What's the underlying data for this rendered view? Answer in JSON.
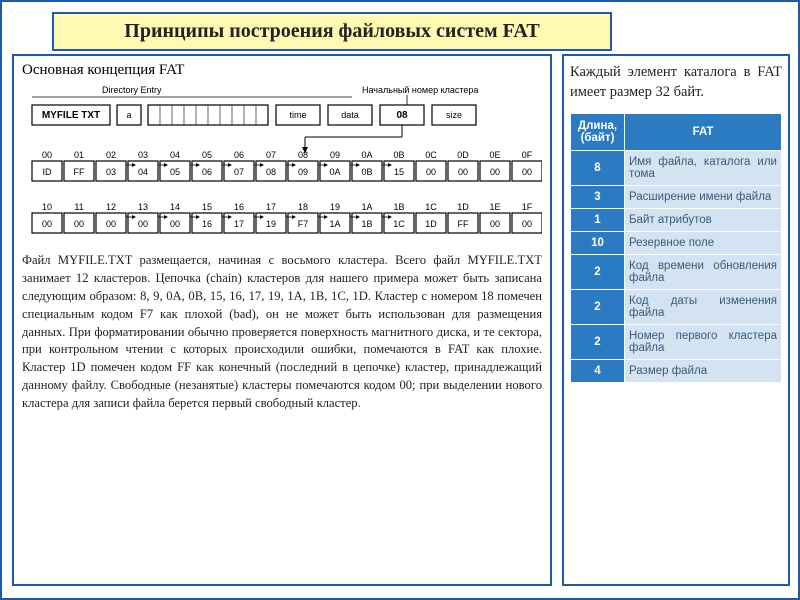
{
  "title": "Принципы построения файловых систем FAT",
  "left": {
    "subtitle": "Основная концепция FAT",
    "labels": {
      "directory_entry": "Directory Entry",
      "start_cluster": "Начальный номер кластера"
    },
    "entry_fields": [
      "MYFILE TXT",
      "a",
      "time",
      "data",
      "08",
      "size"
    ],
    "row0_headers": [
      "00",
      "01",
      "02",
      "03",
      "04",
      "05",
      "06",
      "07",
      "08",
      "09",
      "0A",
      "0B",
      "0C",
      "0D",
      "0E",
      "0F"
    ],
    "row0_values": [
      "ID",
      "FF",
      "03",
      "04",
      "05",
      "06",
      "07",
      "08",
      "09",
      "0A",
      "0B",
      "15",
      "00",
      "00",
      "00",
      "00"
    ],
    "row1_headers": [
      "10",
      "11",
      "12",
      "13",
      "14",
      "15",
      "16",
      "17",
      "18",
      "19",
      "1A",
      "1B",
      "1C",
      "1D",
      "1E",
      "1F"
    ],
    "row1_values": [
      "00",
      "00",
      "00",
      "00",
      "00",
      "16",
      "17",
      "19",
      "F7",
      "1A",
      "1B",
      "1C",
      "1D",
      "FF",
      "00",
      "00"
    ],
    "body": "Файл MYFILE.TXT размещается, начиная с восьмого кластера. Всего файл MYFILE.TXT занимает 12 кластеров. Цепочка (chain) кластеров для нашего примера может быть записана следующим образом: 8, 9, 0A, 0B, 15, 16, 17, 19, 1A, 1B, 1C, 1D. Кластер с номером 18 помечен специальным кодом F7 как плохой (bad), он не может быть использован для размещения данных. При форматировании обычно проверяется поверхность магнитного диска, и те сектора, при контрольном чтении с которых происходили ошибки, помечаются в FAT как плохие. Кластер 1D помечен кодом FF как конечный (последний в цепочке) кластер, принадлежащий данному файлу. Свободные (незанятые) кластеры помечаются кодом 00; при выделении нового кластера для записи файла берется первый свободный кластер."
  },
  "right": {
    "intro": "Каждый элемент каталога в FAT имеет размер 32 байт.",
    "table": {
      "head_len": "Длина, (байт)",
      "head_fat": "FAT",
      "rows": [
        {
          "len": "8",
          "desc": "Имя файла, каталога или тома"
        },
        {
          "len": "3",
          "desc": "Расширение имени файла"
        },
        {
          "len": "1",
          "desc": "Байт атрибутов"
        },
        {
          "len": "10",
          "desc": "Резервное поле"
        },
        {
          "len": "2",
          "desc": "Код времени обновления файла"
        },
        {
          "len": "2",
          "desc": "Код даты изменения файла"
        },
        {
          "len": "2",
          "desc": "Номер первого кластера файла"
        },
        {
          "len": "4",
          "desc": "Размер файла"
        }
      ]
    }
  },
  "colors": {
    "frame": "#1f5aa9",
    "banner_bg": "#fff9b2",
    "table_header": "#2b7bc2",
    "table_cell": "#d4e3f2"
  }
}
